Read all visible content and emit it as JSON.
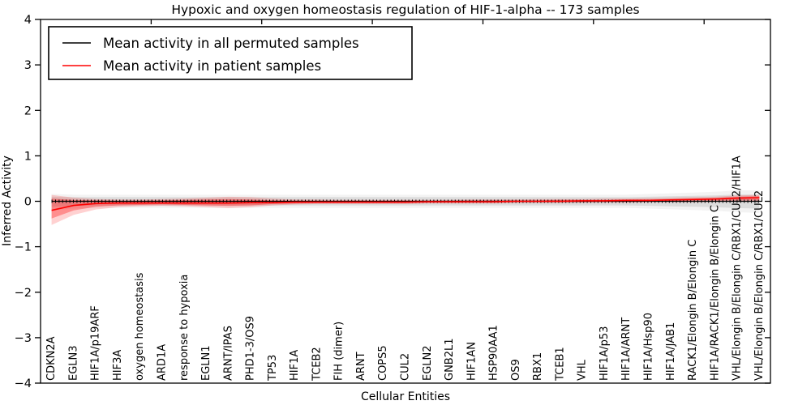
{
  "figure": {
    "title": "Hypoxic and oxygen homeostasis regulation of HIF-1-alpha -- 173 samples",
    "xlabel": "Cellular Entities",
    "ylabel": "Inferred Activity",
    "legend": {
      "items": [
        {
          "label": "Mean activity in all permuted samples",
          "color": "#000000"
        },
        {
          "label": "Mean activity in patient samples",
          "color": "#ff0000"
        }
      ]
    }
  },
  "chart_data": {
    "type": "line",
    "title": "Hypoxic and oxygen homeostasis regulation of HIF-1-alpha -- 173 samples",
    "xlabel": "Cellular Entities",
    "ylabel": "Inferred Activity",
    "ylim": [
      -4,
      4
    ],
    "yticks": [
      -4,
      -3,
      -2,
      -1,
      0,
      1,
      2,
      3,
      4
    ],
    "xticks_data": [
      5,
      10,
      15,
      20,
      25,
      30
    ],
    "grid": false,
    "legend_position": "upper left",
    "categories": [
      "CDKN2A",
      "EGLN3",
      "HIF1A/p19ARF",
      "HIF3A",
      "oxygen homeostasis",
      "ARD1A",
      "response to hypoxia",
      "EGLN1",
      "ARNT/IPAS",
      "PHD1-3/OS9",
      "TP53",
      "HIF1A",
      "TCEB2",
      "FIH (dimer)",
      "ARNT",
      "COPS5",
      "CUL2",
      "EGLN2",
      "GNB2L1",
      "HIF1AN",
      "HSP90AA1",
      "OS9",
      "RBX1",
      "TCEB1",
      "VHL",
      "HIF1A/p53",
      "HIF1A/ARNT",
      "HIF1A/Hsp90",
      "HIF1A/JAB1",
      "RACK1/Elongin B/Elongin C",
      "HIF1A/RACK1/Elongin B/Elongin C",
      "VHL/Elongin B/Elongin C/RBX1/CUL2/HIF1A",
      "VHL/Elongin B/Elongin C/RBX1/CUL2"
    ],
    "series": [
      {
        "name": "Mean activity in all permuted samples",
        "color": "#000000",
        "line_style": "solid-with-tick-dashes",
        "values": [
          0,
          0,
          0,
          0,
          0,
          0,
          0,
          0,
          0,
          0,
          0,
          0,
          0,
          0,
          0,
          0,
          0,
          0,
          0,
          0,
          0,
          0,
          0,
          0,
          0,
          0,
          0,
          0,
          0,
          0,
          0,
          0,
          0
        ],
        "band_color": "#aaaaaa",
        "band_lower": [
          -0.12,
          -0.1,
          -0.09,
          -0.09,
          -0.09,
          -0.09,
          -0.09,
          -0.09,
          -0.09,
          -0.09,
          -0.09,
          -0.09,
          -0.09,
          -0.09,
          -0.09,
          -0.09,
          -0.09,
          -0.09,
          -0.09,
          -0.09,
          -0.09,
          -0.09,
          -0.09,
          -0.09,
          -0.09,
          -0.09,
          -0.09,
          -0.1,
          -0.11,
          -0.12,
          -0.13,
          -0.15,
          -0.16
        ],
        "band_upper": [
          0.1,
          0.09,
          0.09,
          0.09,
          0.09,
          0.09,
          0.09,
          0.09,
          0.09,
          0.09,
          0.09,
          0.09,
          0.09,
          0.09,
          0.09,
          0.09,
          0.09,
          0.09,
          0.09,
          0.09,
          0.09,
          0.09,
          0.09,
          0.09,
          0.09,
          0.09,
          0.09,
          0.1,
          0.11,
          0.12,
          0.13,
          0.15,
          0.15
        ]
      },
      {
        "name": "Mean activity in patient samples",
        "color": "#ff0000",
        "line_style": "solid",
        "values": [
          -0.2,
          -0.09,
          -0.05,
          -0.04,
          -0.04,
          -0.04,
          -0.04,
          -0.04,
          -0.04,
          -0.03,
          -0.03,
          -0.02,
          -0.02,
          -0.02,
          -0.02,
          -0.02,
          -0.02,
          -0.01,
          -0.01,
          -0.01,
          -0.01,
          0.0,
          0.0,
          0.0,
          0.01,
          0.01,
          0.02,
          0.02,
          0.03,
          0.04,
          0.05,
          0.07,
          0.08
        ],
        "band_color": "#ff0000",
        "band_lower": [
          -0.52,
          -0.3,
          -0.18,
          -0.13,
          -0.11,
          -0.1,
          -0.11,
          -0.13,
          -0.15,
          -0.13,
          -0.09,
          -0.07,
          -0.06,
          -0.06,
          -0.06,
          -0.06,
          -0.06,
          -0.05,
          -0.05,
          -0.05,
          -0.05,
          -0.04,
          -0.04,
          -0.04,
          -0.03,
          -0.03,
          -0.03,
          -0.02,
          -0.02,
          -0.02,
          -0.01,
          -0.01,
          -0.01
        ],
        "band_upper": [
          0.14,
          0.08,
          0.05,
          0.04,
          0.04,
          0.05,
          0.06,
          0.08,
          0.1,
          0.09,
          0.06,
          0.04,
          0.04,
          0.03,
          0.03,
          0.03,
          0.03,
          0.03,
          0.03,
          0.04,
          0.04,
          0.04,
          0.05,
          0.05,
          0.05,
          0.06,
          0.06,
          0.07,
          0.08,
          0.09,
          0.1,
          0.13,
          0.14
        ],
        "inner_band_lower": [
          -0.38,
          -0.2,
          -0.12,
          -0.09,
          -0.08,
          -0.07,
          -0.08,
          -0.09,
          -0.1,
          -0.09,
          -0.06,
          -0.05,
          -0.04,
          -0.04,
          -0.04,
          -0.04,
          -0.04,
          -0.03,
          -0.03,
          -0.03,
          -0.03,
          -0.02,
          -0.02,
          -0.02,
          -0.02,
          -0.01,
          -0.01,
          -0.01,
          0.0,
          0.0,
          0.01,
          0.02,
          0.02
        ],
        "inner_band_upper": [
          0.06,
          0.03,
          0.02,
          0.01,
          0.01,
          0.02,
          0.03,
          0.04,
          0.05,
          0.04,
          0.02,
          0.01,
          0.01,
          0.01,
          0.01,
          0.01,
          0.01,
          0.01,
          0.01,
          0.02,
          0.02,
          0.02,
          0.02,
          0.03,
          0.03,
          0.03,
          0.04,
          0.04,
          0.05,
          0.06,
          0.07,
          0.1,
          0.11
        ]
      }
    ]
  }
}
